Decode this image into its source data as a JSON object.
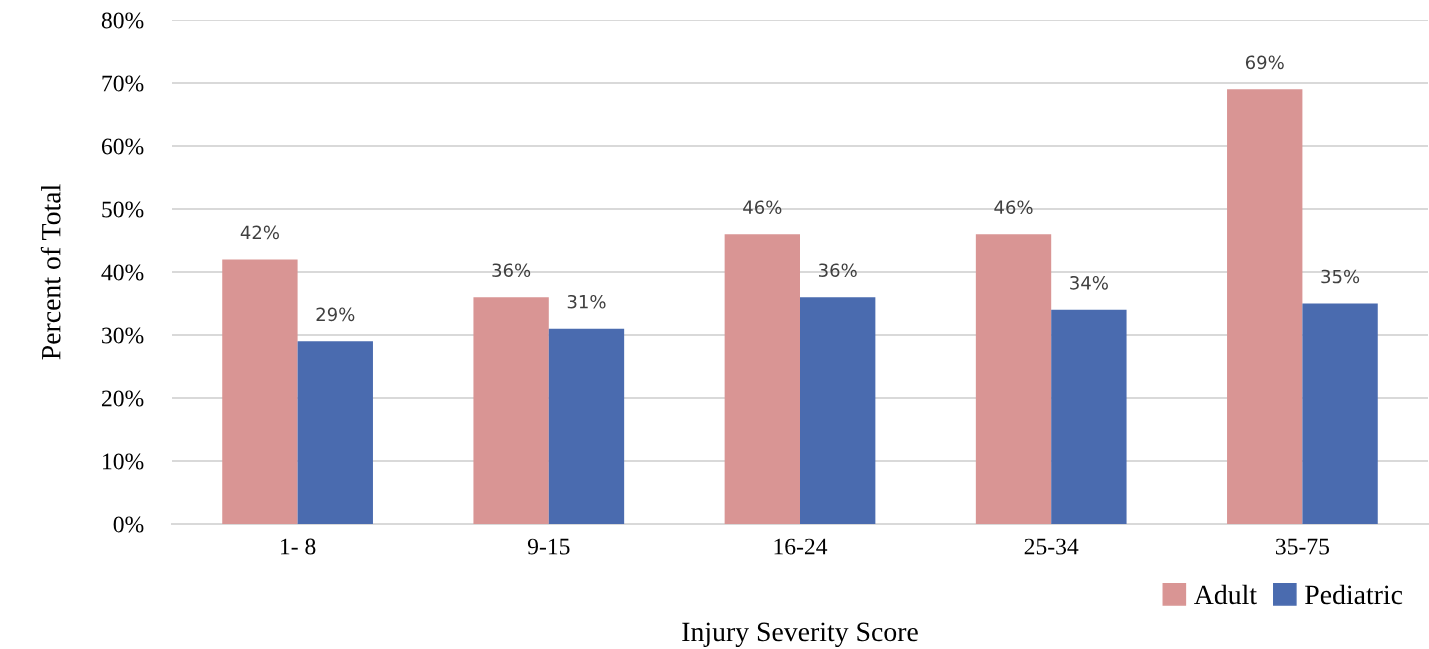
{
  "chart_data": {
    "type": "bar",
    "xlabel": "Injury Severity Score",
    "ylabel": "Percent of Total",
    "categories": [
      "1- 8",
      "9-15",
      "16-24",
      "25-34",
      "35-75"
    ],
    "series": [
      {
        "name": "Adult",
        "color": "#d99594",
        "values": [
          42,
          36,
          46,
          46,
          69
        ],
        "value_labels": [
          "42%",
          "36%",
          "46%",
          "46%",
          "69%"
        ]
      },
      {
        "name": "Pediatric",
        "color": "#4a6baf",
        "values": [
          29,
          31,
          36,
          34,
          35
        ],
        "value_labels": [
          "29%",
          "31%",
          "36%",
          "34%",
          "35%"
        ]
      }
    ],
    "ylim": [
      0,
      80
    ],
    "yticks": [
      {
        "value": 0,
        "label": "0%"
      },
      {
        "value": 10,
        "label": "10%"
      },
      {
        "value": 20,
        "label": "20%"
      },
      {
        "value": 30,
        "label": "30%"
      },
      {
        "value": 40,
        "label": "40%"
      },
      {
        "value": 50,
        "label": "50%"
      },
      {
        "value": 60,
        "label": "60%"
      },
      {
        "value": 70,
        "label": "70%"
      },
      {
        "value": 80,
        "label": "80%"
      }
    ],
    "grid": "y",
    "legend": "bottom right"
  }
}
